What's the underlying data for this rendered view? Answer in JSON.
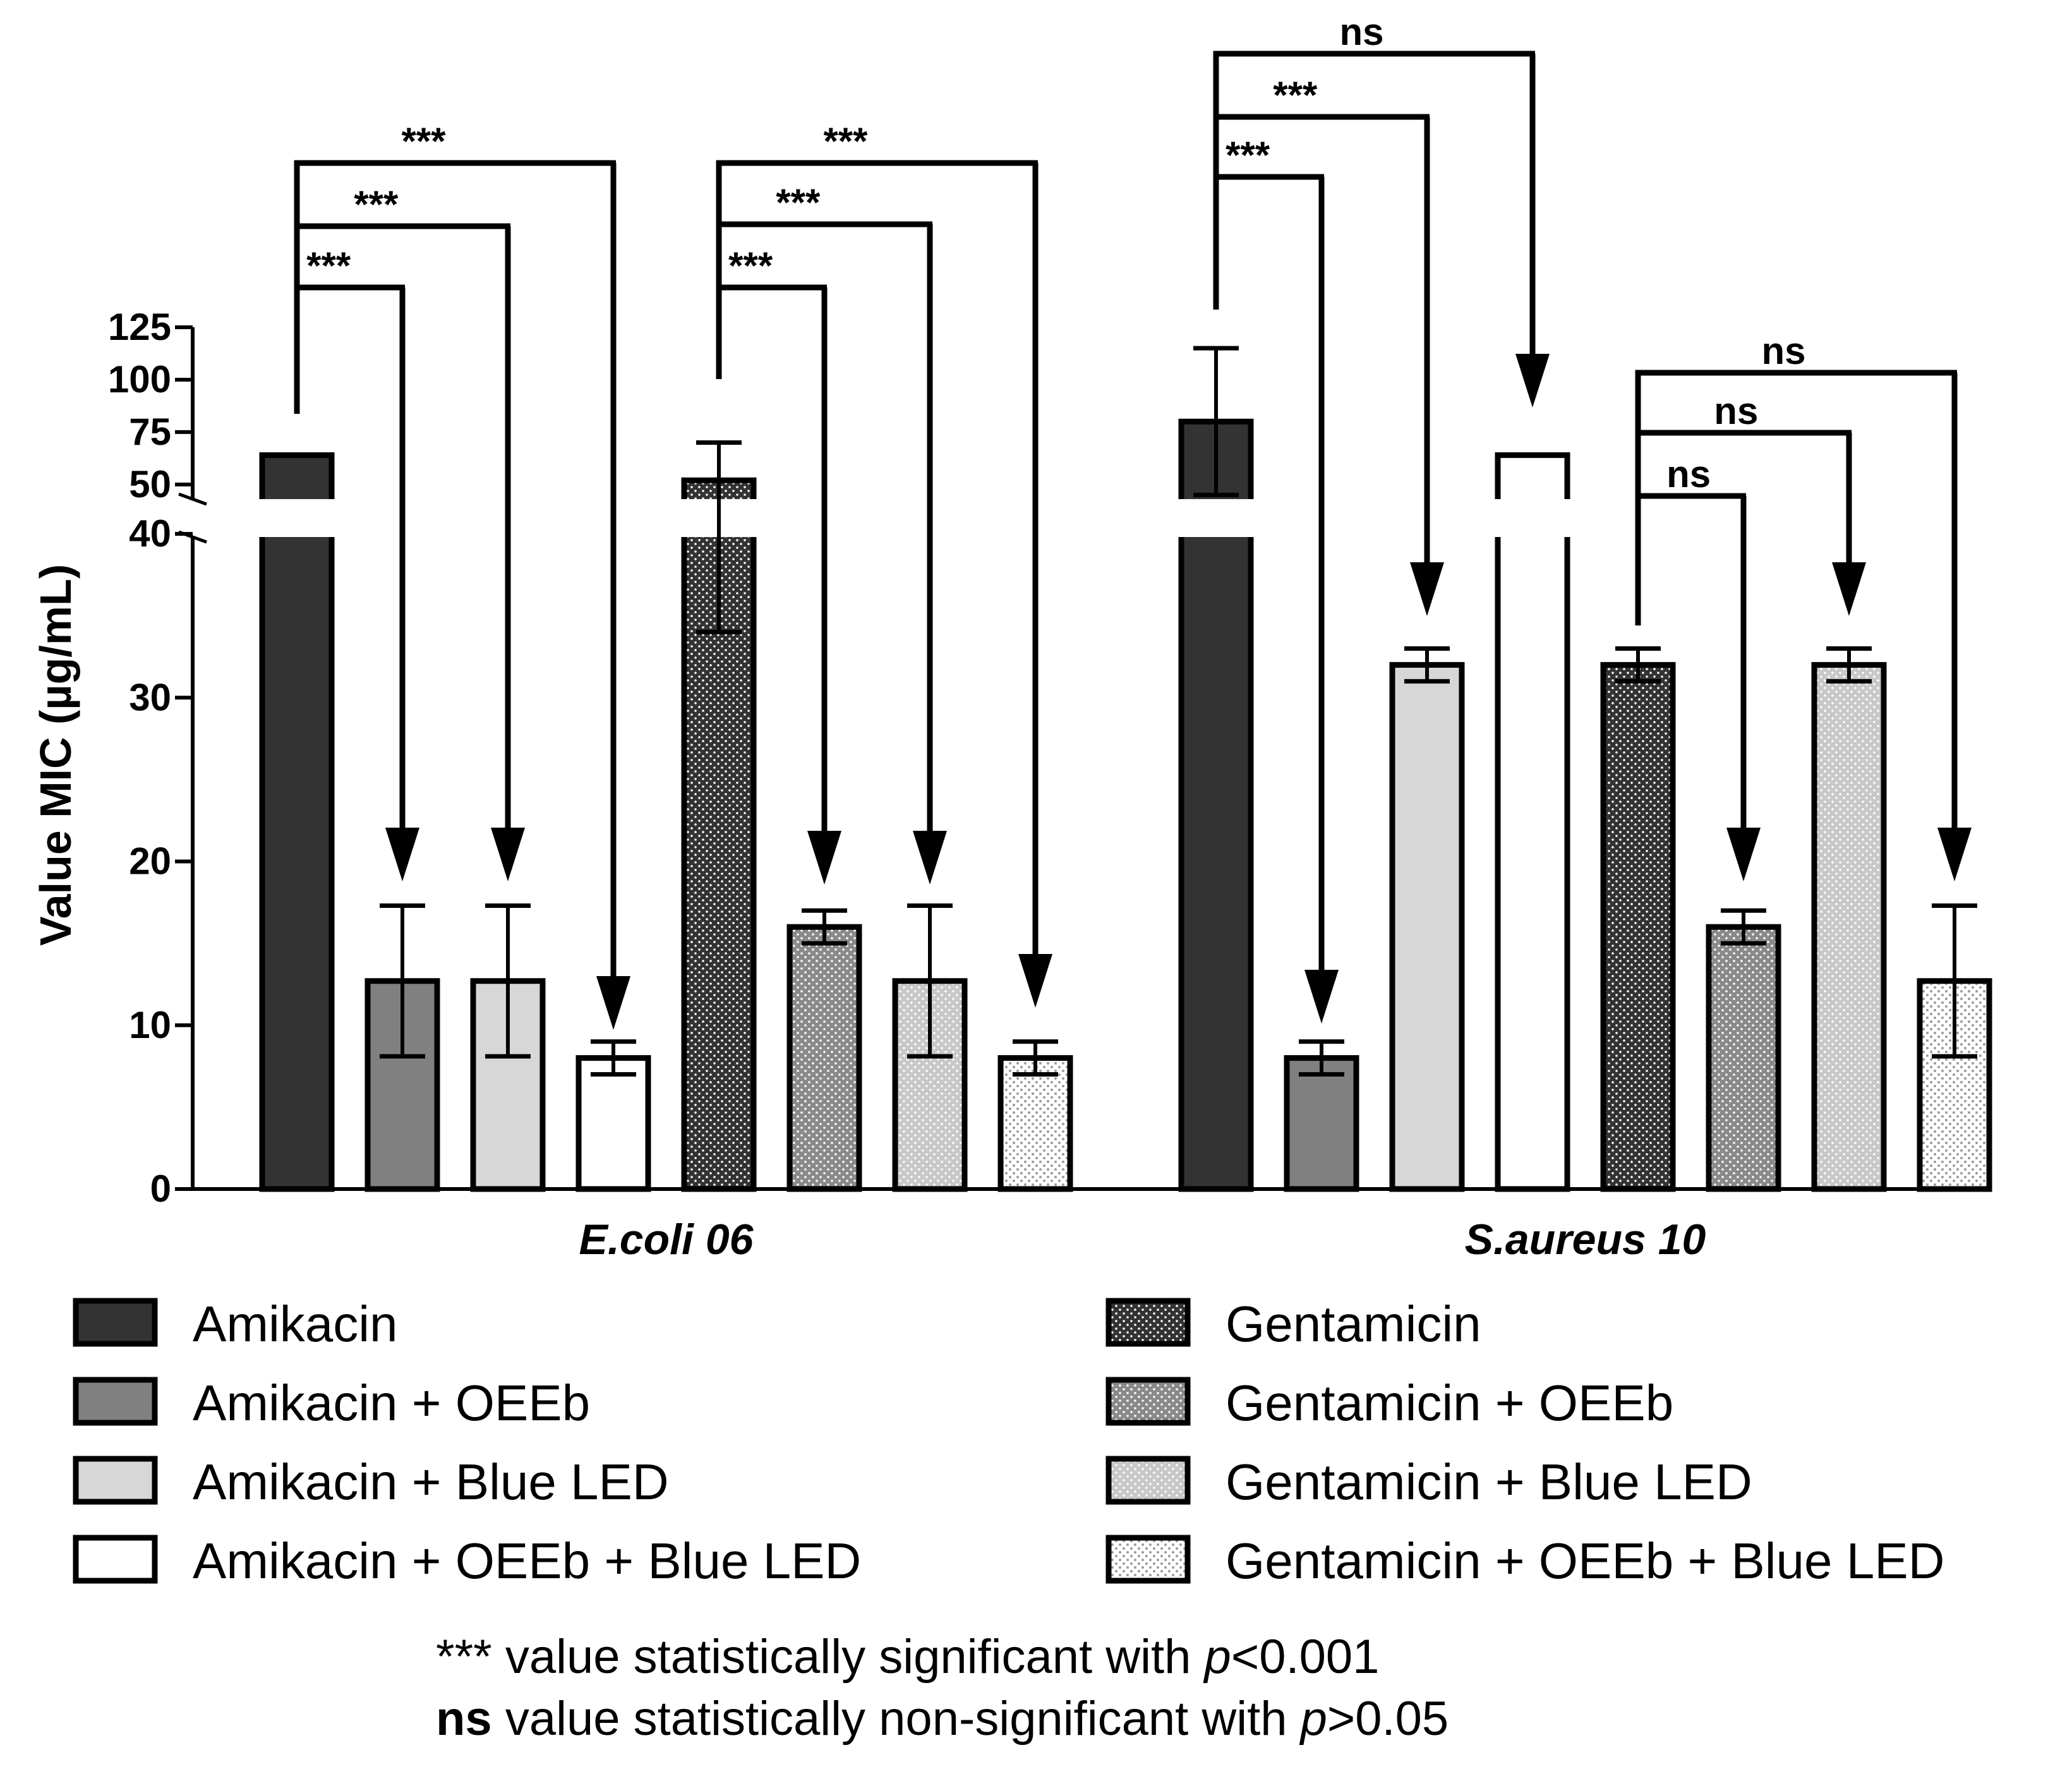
{
  "chart_data": {
    "type": "bar",
    "title": "",
    "ylabel": "Value MIC (µg/mL)",
    "xlabel": "",
    "axis_break": {
      "lower_range": [
        0,
        40
      ],
      "upper_range": [
        40,
        125
      ]
    },
    "yticks_lower": [
      0,
      10,
      20,
      30,
      40
    ],
    "yticks_upper": [
      50,
      75,
      100,
      125
    ],
    "ytick_labels": [
      "0",
      "10",
      "20",
      "30",
      "40",
      "50",
      "75",
      "100",
      "125"
    ],
    "categories": [
      "E.coli 06",
      "S.aureus 10"
    ],
    "series": [
      {
        "name": "Amikacin",
        "values": [
          64,
          80
        ],
        "errors": [
          0,
          35
        ],
        "pattern": "solid-dark"
      },
      {
        "name": "Amikacin + OEEb",
        "values": [
          12.7,
          8
        ],
        "errors": [
          4.6,
          1
        ],
        "pattern": "solid-mid"
      },
      {
        "name": "Amikacin + Blue LED",
        "values": [
          12.7,
          32
        ],
        "errors": [
          4.6,
          1
        ],
        "pattern": "solid-light"
      },
      {
        "name": "Amikacin + OEEb + Blue LED",
        "values": [
          8,
          64
        ],
        "errors": [
          1,
          0
        ],
        "pattern": "solid-white"
      },
      {
        "name": "Gentamicin",
        "values": [
          52,
          32
        ],
        "errors": [
          18,
          1
        ],
        "pattern": "dots-dark"
      },
      {
        "name": "Gentamicin + OEEb",
        "values": [
          16,
          16
        ],
        "errors": [
          1,
          1
        ],
        "pattern": "dots-mid"
      },
      {
        "name": "Gentamicin + Blue LED",
        "values": [
          12.7,
          32
        ],
        "errors": [
          4.6,
          1
        ],
        "pattern": "dots-light"
      },
      {
        "name": "Gentamicin + OEEb + Blue LED",
        "values": [
          8,
          12.7
        ],
        "errors": [
          1,
          4.6
        ],
        "pattern": "dots-white"
      }
    ],
    "comparisons": [
      {
        "group": 0,
        "from": 0,
        "to": 1,
        "label": "***"
      },
      {
        "group": 0,
        "from": 0,
        "to": 2,
        "label": "***"
      },
      {
        "group": 0,
        "from": 0,
        "to": 3,
        "label": "***"
      },
      {
        "group": 0,
        "from": 4,
        "to": 5,
        "label": "***"
      },
      {
        "group": 0,
        "from": 4,
        "to": 6,
        "label": "***"
      },
      {
        "group": 0,
        "from": 4,
        "to": 7,
        "label": "***"
      },
      {
        "group": 1,
        "from": 0,
        "to": 1,
        "label": "***"
      },
      {
        "group": 1,
        "from": 0,
        "to": 2,
        "label": "***"
      },
      {
        "group": 1,
        "from": 0,
        "to": 3,
        "label": "ns"
      },
      {
        "group": 1,
        "from": 4,
        "to": 5,
        "label": "ns"
      },
      {
        "group": 1,
        "from": 4,
        "to": 6,
        "label": "ns"
      },
      {
        "group": 1,
        "from": 4,
        "to": 7,
        "label": "ns"
      }
    ],
    "footnotes": [
      {
        "prefix": "***",
        "text": " value statistically significant with ",
        "var": "p",
        "cond": "<0.001"
      },
      {
        "prefix": "ns",
        "text": " value statistically non-significant with ",
        "var": "p",
        "cond": ">0.05"
      }
    ]
  },
  "colors": {
    "dark": "#333333",
    "mid": "#808080",
    "light": "#d7d7d7",
    "white": "#ffffff",
    "dot": "#ffffff",
    "ink": "#000000"
  }
}
